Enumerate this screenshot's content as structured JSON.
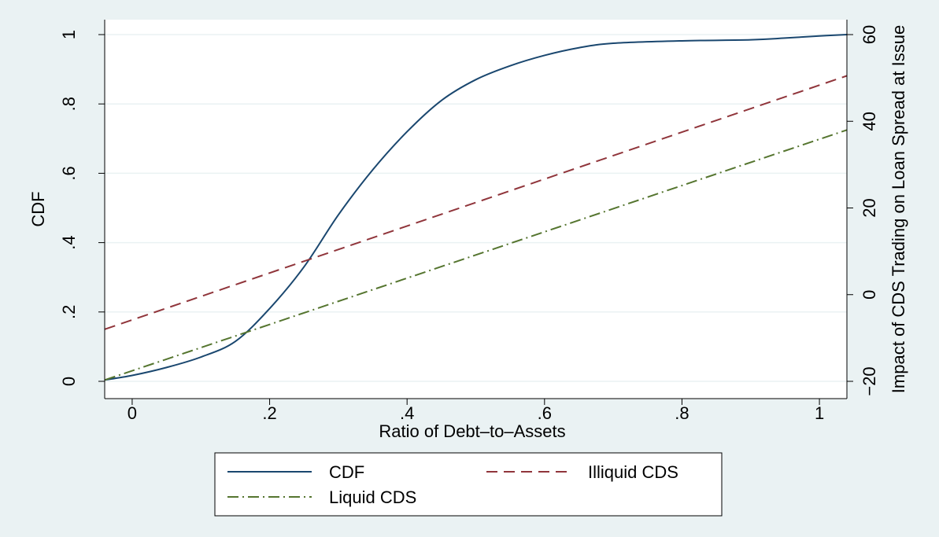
{
  "chart_data": {
    "type": "line",
    "xlabel": "Ratio of Debt–to–Assets",
    "ylabel_left": "CDF",
    "ylabel_right": "Impact of CDS Trading on Loan Spread at Issue",
    "xlim": [
      -0.04,
      1.04
    ],
    "ylim_left": [
      0,
      1
    ],
    "ylim_right": [
      -20,
      60
    ],
    "grid": true,
    "legend_position": "bottom",
    "x_ticks": [
      {
        "value": 0,
        "label": "0"
      },
      {
        "value": 0.2,
        "label": ".2"
      },
      {
        "value": 0.4,
        "label": ".4"
      },
      {
        "value": 0.6,
        "label": ".6"
      },
      {
        "value": 0.8,
        "label": ".8"
      },
      {
        "value": 1,
        "label": "1"
      }
    ],
    "y_ticks_left": [
      {
        "value": 0,
        "label": "0"
      },
      {
        "value": 0.2,
        "label": ".2"
      },
      {
        "value": 0.4,
        "label": ".4"
      },
      {
        "value": 0.6,
        "label": ".6"
      },
      {
        "value": 0.8,
        "label": ".8"
      },
      {
        "value": 1,
        "label": "1"
      }
    ],
    "y_ticks_right": [
      {
        "value": -20,
        "label": "−20"
      },
      {
        "value": 0,
        "label": "0"
      },
      {
        "value": 20,
        "label": "20"
      },
      {
        "value": 40,
        "label": "40"
      },
      {
        "value": 60,
        "label": "60"
      }
    ],
    "series": [
      {
        "name": "CDF",
        "axis": "left",
        "color": "#1a476f",
        "dash": "solid",
        "x": [
          -0.04,
          0,
          0.05,
          0.1,
          0.15,
          0.2,
          0.25,
          0.3,
          0.35,
          0.4,
          0.45,
          0.5,
          0.55,
          0.6,
          0.65,
          0.7,
          0.8,
          0.9,
          0.95,
          1.0,
          1.04
        ],
        "values": [
          0.004,
          0.017,
          0.04,
          0.07,
          0.115,
          0.21,
          0.33,
          0.48,
          0.61,
          0.72,
          0.81,
          0.87,
          0.91,
          0.94,
          0.962,
          0.975,
          0.982,
          0.985,
          0.99,
          0.996,
          1.0
        ]
      },
      {
        "name": "Illiquid CDS",
        "axis": "right",
        "color": "#90353b",
        "dash": "dashed",
        "x": [
          -0.04,
          1.04
        ],
        "values": [
          -8,
          50.5
        ]
      },
      {
        "name": "Liquid CDS",
        "axis": "right",
        "color": "#55752f",
        "dash": "dashdot",
        "x": [
          -0.04,
          1.04
        ],
        "values": [
          -19.7,
          38
        ]
      }
    ]
  }
}
